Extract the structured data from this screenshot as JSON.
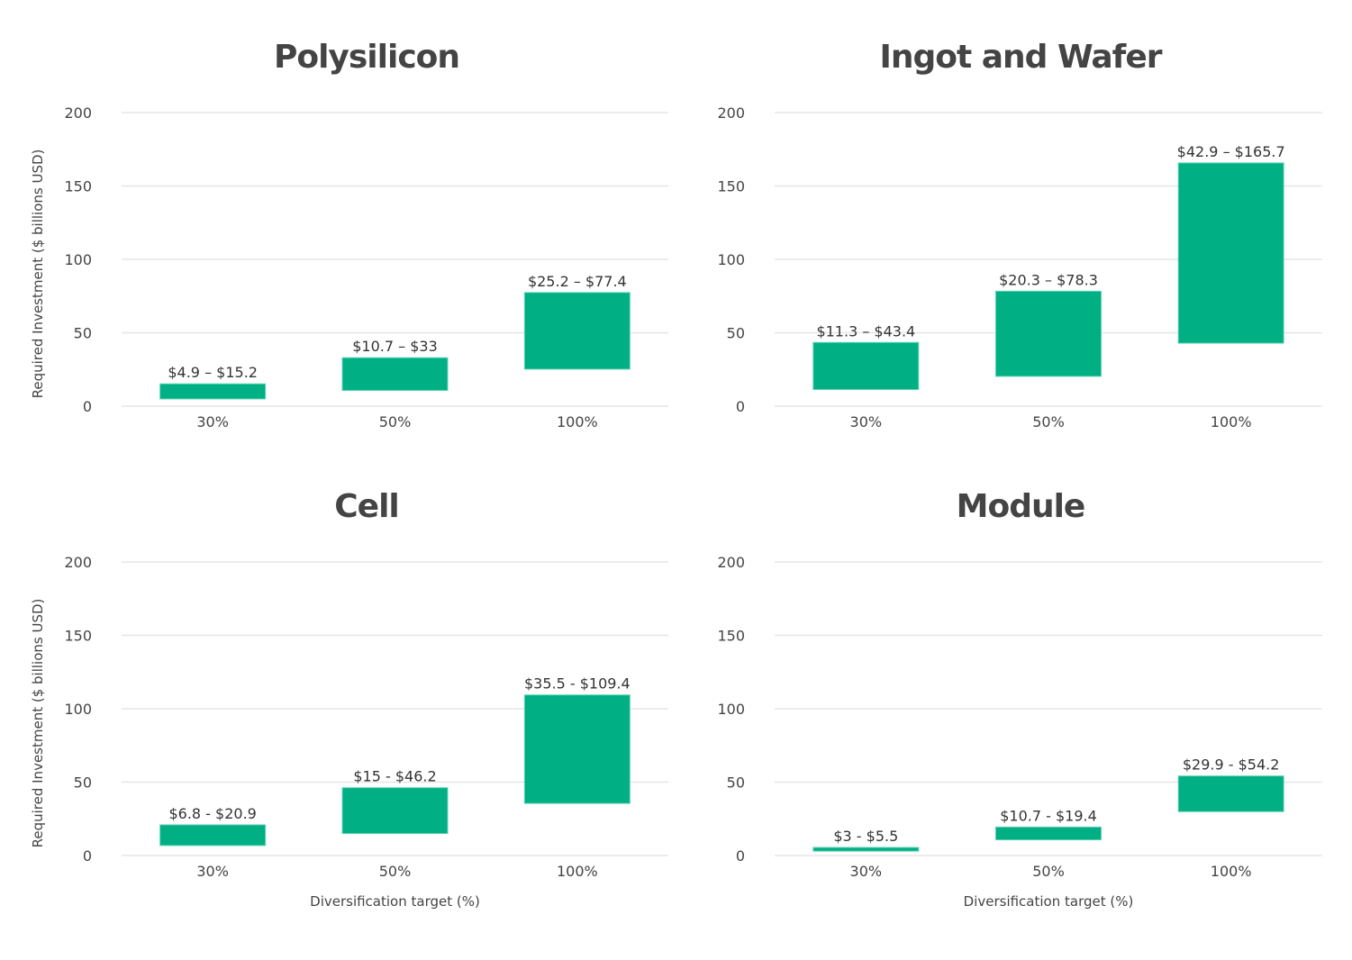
{
  "colors": {
    "bar": "#00af84",
    "bar_edge": "#5fd4b4",
    "grid": "#e6e6e6",
    "text": "#444444"
  },
  "shared": {
    "ylabel": "Required Investment ($ billions USD)",
    "xlabel": "Diversification target (%)"
  },
  "chart_data": [
    {
      "type": "bar",
      "title": "Polysilicon",
      "categories": [
        "30%",
        "50%",
        "100%"
      ],
      "ranges": [
        [
          4.9,
          15.2
        ],
        [
          10.7,
          33
        ],
        [
          25.2,
          77.4
        ]
      ],
      "labels": [
        "$4.9 – $15.2",
        "$10.7 – $33",
        "$25.2 – $77.4"
      ],
      "ylabel": "Required Investment ($ billions USD)",
      "xlabel": "",
      "ylim": [
        0,
        200
      ],
      "yticks": [
        0,
        50,
        100,
        150,
        200
      ],
      "grid": true
    },
    {
      "type": "bar",
      "title": "Ingot and Wafer",
      "categories": [
        "30%",
        "50%",
        "100%"
      ],
      "ranges": [
        [
          11.3,
          43.4
        ],
        [
          20.3,
          78.3
        ],
        [
          42.9,
          165.7
        ]
      ],
      "labels": [
        "$11.3 – $43.4",
        "$20.3 – $78.3",
        "$42.9 – $165.7"
      ],
      "ylabel": "",
      "xlabel": "",
      "ylim": [
        0,
        200
      ],
      "yticks": [
        0,
        50,
        100,
        150,
        200
      ],
      "grid": true
    },
    {
      "type": "bar",
      "title": "Cell",
      "categories": [
        "30%",
        "50%",
        "100%"
      ],
      "ranges": [
        [
          6.8,
          20.9
        ],
        [
          15,
          46.2
        ],
        [
          35.5,
          109.4
        ]
      ],
      "labels": [
        "$6.8 - $20.9",
        "$15 - $46.2",
        "$35.5 - $109.4"
      ],
      "ylabel": "Required Investment ($ billions USD)",
      "xlabel": "Diversification target (%)",
      "ylim": [
        0,
        200
      ],
      "yticks": [
        0,
        50,
        100,
        150,
        200
      ],
      "grid": true
    },
    {
      "type": "bar",
      "title": "Module",
      "categories": [
        "30%",
        "50%",
        "100%"
      ],
      "ranges": [
        [
          3,
          5.5
        ],
        [
          10.7,
          19.4
        ],
        [
          29.9,
          54.2
        ]
      ],
      "labels": [
        "$3 - $5.5",
        "$10.7 - $19.4",
        "$29.9 - $54.2"
      ],
      "ylabel": "",
      "xlabel": "Diversification target (%)",
      "ylim": [
        0,
        200
      ],
      "yticks": [
        0,
        50,
        100,
        150,
        200
      ],
      "grid": true
    }
  ]
}
